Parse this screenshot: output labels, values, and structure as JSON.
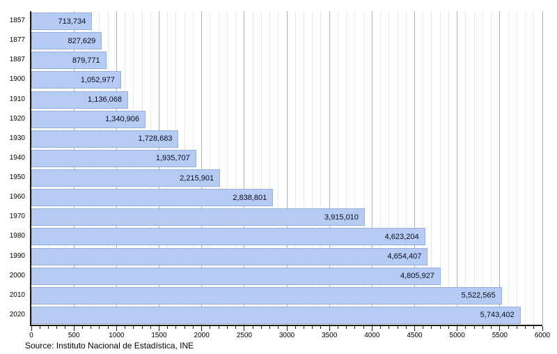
{
  "chart_data": {
    "type": "bar",
    "orientation": "horizontal",
    "title": "",
    "xlabel": "",
    "ylabel": "",
    "categories": [
      "1857",
      "1877",
      "1887",
      "1900",
      "1910",
      "1920",
      "1930",
      "1940",
      "1950",
      "1960",
      "1970",
      "1980",
      "1990",
      "2000",
      "2010",
      "2020"
    ],
    "values": [
      713734,
      827629,
      879771,
      1052977,
      1136068,
      1340906,
      1728683,
      1935707,
      2215901,
      2838801,
      3915010,
      4623204,
      4654407,
      4805927,
      5522565,
      5743402
    ],
    "value_labels": [
      "713,734",
      "827,629",
      "879,771",
      "1,052,977",
      "1,136,068",
      "1,340,906",
      "1,728,683",
      "1,935,707",
      "2,215,901",
      "2,838,801",
      "3,915,010",
      "4,623,204",
      "4,654,407",
      "4,805,927",
      "5,522,565",
      "5,743,402"
    ],
    "xlim": [
      0,
      6000
    ],
    "x_tick_labels": [
      "0",
      "500",
      "1000",
      "1500",
      "2000",
      "2500",
      "3000",
      "3500",
      "4000",
      "4500",
      "5000",
      "5500",
      "6000"
    ],
    "x_tick_step": 500,
    "x_minor_tick_step": 100,
    "x_axis_value_divisor": 1000,
    "grid": "vertical; minor lines every 100, major lines every 500",
    "legend": "none",
    "colors": {
      "bar_fill": "#b5cbf4",
      "bar_border": "#96afe0",
      "grid_minor": "#e8e8e8",
      "grid_major": "#b2b2b2",
      "axis": "#1a1a1a",
      "value_text": "#0b0b1a"
    }
  },
  "source_note": "Source: Instituto Nacional de Estadística, INE"
}
